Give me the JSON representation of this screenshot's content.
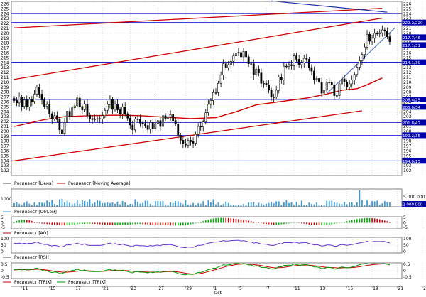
{
  "colors": {
    "background": "#ffffff",
    "candle": "#000000",
    "grid": "#c8c8c8",
    "hline": "#0000cc",
    "ma": "#cc0000",
    "channel": "#cc0000",
    "trend_blue": "#1a2fa8",
    "trend_light": "#5a7ac8",
    "volume": "#3a9bd8",
    "price_label_bg": "#0000aa",
    "ao_up": "#00aa00",
    "ao_down": "#cc0000",
    "rsi": "#6633cc",
    "trix": "#009900",
    "trix_signal": "#cc0000",
    "legend_marker": "#4a4a4a"
  },
  "chart_data": [
    {
      "panel": "price",
      "type": "candlestick",
      "series_name": "Росинвест [Цена]",
      "ma_name": "Росинвест [Moving Average]",
      "ylim": [
        191,
        226.5
      ],
      "y_ticks": [
        192,
        193,
        194,
        195,
        196,
        197,
        198,
        199,
        200,
        201,
        202,
        203,
        204,
        205,
        206,
        207,
        208,
        209,
        210,
        211,
        212,
        213,
        214,
        215,
        216,
        217,
        218,
        219,
        220,
        221,
        222,
        223,
        224,
        225,
        226
      ],
      "close": [
        206.3,
        205.8,
        207.0,
        205.1,
        206.4,
        205.0,
        206.5,
        206.1,
        207.6,
        209.0,
        207.6,
        206.4,
        205.1,
        205.5,
        203.6,
        202.5,
        203.2,
        202.4,
        200.3,
        199.6,
        201.8,
        204.1,
        203.1,
        204.8,
        205.2,
        206.8,
        205.1,
        204.4,
        205.6,
        203.3,
        202.6,
        202.4,
        202.5,
        202.6,
        202.5,
        203.2,
        204.3,
        205.5,
        206.5,
        204.5,
        205.6,
        204.4,
        203.5,
        205.0,
        203.6,
        202.7,
        201.3,
        200.3,
        202.5,
        202.5,
        201.7,
        201.6,
        201.2,
        200.4,
        201.8,
        200.6,
        201.6,
        202.2,
        201.0,
        203.2,
        202.5,
        203.0,
        203.4,
        202.2,
        201.5,
        199.2,
        198.2,
        197.5,
        197.2,
        198.2,
        197.9,
        197.6,
        199.4,
        201.0,
        200.9,
        201.9,
        203.8,
        205.5,
        206.3,
        207.9,
        207.9,
        209.8,
        211.5,
        213.8,
        213.0,
        213.6,
        214.3,
        215.4,
        216.0,
        216.1,
        215.2,
        216.3,
        215.2,
        213.8,
        213.8,
        211.5,
        212.7,
        211.9,
        209.8,
        209.8,
        209.5,
        208.4,
        207.0,
        207.0,
        208.4,
        211.1,
        210.5,
        213.3,
        213.3,
        213.6,
        213.4,
        215.4,
        214.7,
        213.6,
        214.0,
        214.9,
        214.7,
        213.0,
        212.3,
        210.6,
        210.8,
        210.0,
        207.8,
        208.4,
        210.0,
        210.0,
        209.5,
        207.3,
        207.3,
        209.7,
        210.7,
        210.1,
        209.0,
        209.7,
        210.5,
        211.6,
        213.1,
        214.4,
        215.7,
        217.2,
        219.8,
        218.4,
        219.0,
        220.0,
        219.9,
        220.1,
        220.7,
        220.5,
        219.3,
        218.3
      ],
      "moving_average": [
        {
          "i": 0,
          "v": 201.0
        },
        {
          "i": 6,
          "v": 201.7
        },
        {
          "i": 12,
          "v": 202.4
        },
        {
          "i": 20,
          "v": 203.0
        },
        {
          "i": 30,
          "v": 203.2
        },
        {
          "i": 40,
          "v": 203.3
        },
        {
          "i": 50,
          "v": 203.2
        },
        {
          "i": 60,
          "v": 202.9
        },
        {
          "i": 70,
          "v": 202.6
        },
        {
          "i": 80,
          "v": 202.8
        },
        {
          "i": 88,
          "v": 204.0
        },
        {
          "i": 96,
          "v": 205.4
        },
        {
          "i": 106,
          "v": 206.1
        },
        {
          "i": 116,
          "v": 206.8
        },
        {
          "i": 124,
          "v": 207.6
        },
        {
          "i": 130,
          "v": 208.4
        },
        {
          "i": 136,
          "v": 208.7
        },
        {
          "i": 140,
          "v": 209.5
        },
        {
          "i": 146,
          "v": 210.9
        }
      ],
      "channel_lines": [
        {
          "from": [
            0,
            221.1
          ],
          "to": [
            146,
            225.1
          ]
        },
        {
          "from": [
            0,
            210.6
          ],
          "to": [
            146,
            223.1
          ]
        },
        {
          "from": [
            0,
            194.0
          ],
          "to": [
            138,
            204.2
          ]
        }
      ],
      "trend_lines": [
        {
          "from": [
            102,
            226.6
          ],
          "to": [
            148,
            224.3
          ],
          "style": "dark"
        },
        {
          "from": [
            124,
            207.7
          ],
          "to": [
            151,
            221.1
          ],
          "style": "light"
        }
      ],
      "horizontal_levels": [
        224.0,
        222.2,
        217.6,
        214.1,
        206.5,
        205.0,
        201.8,
        199.2,
        194.0
      ],
      "price_labels": [
        {
          "text": "222.2/220",
          "value": 222.2
        },
        {
          "text": "217.7/46",
          "value": 219.2
        },
        {
          "text": "217.1/31",
          "value": 217.6
        },
        {
          "text": "214.1/39",
          "value": 214.1
        },
        {
          "text": "206.4/25",
          "value": 206.5
        },
        {
          "text": "205.0/34",
          "value": 205.0
        },
        {
          "text": "201.8/42",
          "value": 201.8
        },
        {
          "text": "199.2/35",
          "value": 199.2
        },
        {
          "text": "194.0/15",
          "value": 194.0
        }
      ]
    },
    {
      "panel": "volume",
      "type": "bar",
      "series_name": "Росинвест [Объем]",
      "y_left_label": "1000",
      "y_right_labels": [
        "5 000 000",
        "2 000 000"
      ],
      "values": [
        22,
        27,
        17,
        10,
        24,
        33,
        19,
        9,
        27,
        12,
        27,
        25,
        23,
        38,
        26,
        41,
        17,
        13,
        45,
        49,
        26,
        37,
        25,
        15,
        21,
        40,
        17,
        40,
        35,
        30,
        46,
        19,
        27,
        39,
        36,
        22,
        23,
        27,
        22,
        26,
        18,
        31,
        15,
        35,
        26,
        12,
        18,
        16,
        46,
        31,
        19,
        23,
        37,
        37,
        17,
        9,
        34,
        35,
        33,
        35,
        14,
        10,
        27,
        23,
        35,
        33,
        23,
        16,
        39,
        14,
        15,
        23,
        12,
        21,
        18,
        34,
        10,
        41,
        26,
        46,
        15,
        27,
        9,
        17,
        32,
        23,
        14,
        12,
        11,
        13,
        9,
        18,
        11,
        26,
        26,
        29,
        11,
        24,
        19,
        14,
        19,
        23,
        29,
        21,
        33,
        33,
        12,
        27,
        41,
        22,
        28,
        9,
        29,
        12,
        37,
        10,
        12,
        25,
        17,
        15,
        26,
        11,
        9,
        12,
        37,
        35,
        37,
        28,
        24,
        19,
        16,
        29,
        15,
        27,
        27,
        11,
        26,
        100,
        41,
        13,
        40,
        14,
        35,
        33,
        37,
        14,
        21,
        34,
        27,
        26
      ]
    },
    {
      "panel": "ao",
      "type": "histogram",
      "series_name": "Росинвест [AO]",
      "ylim": [
        -5,
        5
      ],
      "ticks_left": [
        "5",
        "0",
        "-5"
      ],
      "ticks_right": [
        "5",
        "0",
        "-5"
      ],
      "values": [
        0.8,
        1.5,
        2.0,
        2.4,
        2.6,
        2.4,
        2.0,
        1.5,
        0.8,
        0.2,
        -0.4,
        -0.6,
        -0.8,
        -1.0,
        -1.2,
        -1.4,
        -1.5,
        -1.7,
        -1.9,
        -2.0,
        -2.1,
        -2.0,
        -1.8,
        -1.6,
        -1.4,
        -1.2,
        -1.0,
        -0.9,
        -0.8,
        -0.7,
        -0.7,
        -0.8,
        -0.9,
        -1.0,
        -1.2,
        -1.3,
        -1.5,
        -1.6,
        -1.7,
        -1.8,
        -1.8,
        -1.8,
        -1.7,
        -1.6,
        -1.5,
        -1.4,
        -1.3,
        -1.2,
        -1.1,
        -1.0,
        -1.0,
        -1.1,
        -1.2,
        -1.3,
        -1.4,
        -1.5,
        -1.6,
        -1.7,
        -1.8,
        -1.9,
        -2.0,
        -2.1,
        -2.2,
        -2.3,
        -2.3,
        -2.3,
        -2.2,
        -2.1,
        -1.9,
        -1.6,
        -1.2,
        -0.8,
        -0.4,
        0.2,
        0.8,
        1.4,
        2.0,
        2.6,
        3.1,
        3.5,
        3.8,
        4.0,
        4.1,
        4.1,
        4.0,
        3.9,
        3.7,
        3.5,
        3.3,
        3.0,
        2.7,
        2.4,
        2.1,
        1.7,
        1.3,
        0.9,
        0.5,
        0.1,
        -0.3,
        -0.7,
        -1.0,
        -1.2,
        -1.4,
        -1.5,
        -1.5,
        -1.4,
        -1.2,
        -1.0,
        -0.7,
        -0.5,
        -0.3,
        -0.2,
        -0.2,
        -0.3,
        -0.5,
        -0.7,
        -1.0,
        -1.3,
        -1.5,
        -1.7,
        -1.8,
        -1.9,
        -1.9,
        -1.8,
        -1.7,
        -1.5,
        -1.2,
        -0.9,
        -0.5,
        -0.1,
        0.3,
        0.8,
        1.3,
        1.8,
        2.3,
        2.7,
        3.1,
        3.4,
        3.6,
        3.8,
        3.9,
        3.9,
        3.8,
        3.6,
        3.3,
        2.9,
        2.4,
        1.9,
        1.4,
        0.9
      ]
    },
    {
      "panel": "rsi",
      "type": "line",
      "series_name": "Росинвест [RSI]",
      "ylim": [
        0,
        100
      ],
      "ticks_left": [
        "100",
        "50",
        "0"
      ],
      "ticks_right": [
        "100",
        "50",
        "0"
      ],
      "values": [
        62,
        60,
        63,
        58,
        62,
        58,
        62,
        61,
        66,
        69,
        63,
        58,
        54,
        55,
        48,
        45,
        48,
        46,
        40,
        38,
        46,
        54,
        51,
        57,
        58,
        63,
        56,
        53,
        58,
        50,
        48,
        48,
        48,
        49,
        48,
        50,
        55,
        60,
        63,
        56,
        60,
        55,
        52,
        57,
        51,
        48,
        44,
        41,
        49,
        49,
        46,
        46,
        45,
        42,
        48,
        44,
        48,
        50,
        46,
        54,
        51,
        53,
        54,
        50,
        47,
        40,
        37,
        35,
        34,
        38,
        37,
        36,
        43,
        49,
        49,
        52,
        58,
        63,
        65,
        69,
        69,
        72,
        75,
        79,
        76,
        77,
        78,
        80,
        81,
        81,
        77,
        79,
        75,
        70,
        70,
        63,
        66,
        63,
        57,
        57,
        56,
        52,
        48,
        48,
        53,
        61,
        58,
        66,
        66,
        66,
        65,
        70,
        67,
        63,
        64,
        67,
        66,
        60,
        57,
        52,
        53,
        50,
        44,
        46,
        51,
        51,
        49,
        43,
        43,
        51,
        54,
        52,
        49,
        51,
        54,
        57,
        61,
        64,
        67,
        70,
        75,
        70,
        72,
        74,
        73,
        73,
        74,
        73,
        68,
        64
      ]
    },
    {
      "panel": "trix",
      "type": "line",
      "series_name": "Росинвест [TRIX]",
      "signal_name": "Росинвест [TRIX]",
      "ylim": [
        -0.5,
        0.5
      ],
      "ticks_left": [
        "0.5",
        "0",
        "-0.5"
      ],
      "ticks_right": [
        "0.5",
        "0",
        "-0.5"
      ],
      "values": [
        0.08,
        0.07,
        0.1,
        0.05,
        0.1,
        0.04,
        0.09,
        0.08,
        0.13,
        0.17,
        0.11,
        0.04,
        -0.02,
        0.0,
        -0.08,
        -0.12,
        -0.08,
        -0.1,
        -0.17,
        -0.19,
        -0.1,
        -0.01,
        -0.04,
        0.02,
        0.04,
        0.1,
        0.03,
        0.0,
        0.05,
        -0.03,
        -0.05,
        -0.06,
        -0.06,
        -0.05,
        -0.06,
        -0.03,
        0.01,
        0.05,
        0.09,
        0.02,
        0.06,
        0.01,
        -0.02,
        0.04,
        -0.02,
        -0.05,
        -0.1,
        -0.14,
        -0.06,
        -0.06,
        -0.09,
        -0.09,
        -0.11,
        -0.14,
        -0.08,
        -0.13,
        -0.09,
        -0.07,
        -0.11,
        -0.03,
        -0.06,
        -0.04,
        -0.02,
        -0.07,
        -0.1,
        -0.18,
        -0.22,
        -0.25,
        -0.26,
        -0.22,
        -0.23,
        -0.24,
        -0.17,
        -0.11,
        -0.11,
        -0.07,
        0.0,
        0.07,
        0.1,
        0.16,
        0.16,
        0.24,
        0.3,
        0.38,
        0.35,
        0.37,
        0.4,
        0.44,
        0.46,
        0.46,
        0.42,
        0.46,
        0.42,
        0.37,
        0.37,
        0.28,
        0.32,
        0.29,
        0.21,
        0.21,
        0.2,
        0.16,
        0.11,
        0.11,
        0.16,
        0.26,
        0.24,
        0.34,
        0.34,
        0.35,
        0.34,
        0.42,
        0.39,
        0.35,
        0.36,
        0.4,
        0.39,
        0.33,
        0.3,
        0.24,
        0.24,
        0.21,
        0.13,
        0.15,
        0.21,
        0.21,
        0.19,
        0.11,
        0.11,
        0.2,
        0.24,
        0.22,
        0.18,
        0.2,
        0.23,
        0.27,
        0.33,
        0.38,
        0.42,
        0.45,
        0.45,
        0.42,
        0.44,
        0.45,
        0.44,
        0.44,
        0.45,
        0.45,
        0.41,
        0.37
      ],
      "signal": [
        0.05,
        0.06,
        0.07,
        0.07,
        0.07,
        0.06,
        0.06,
        0.07,
        0.08,
        0.09,
        0.09,
        0.08,
        0.06,
        0.04,
        0.02,
        -0.01,
        -0.03,
        -0.05,
        -0.07,
        -0.09,
        -0.1,
        -0.09,
        -0.08,
        -0.07,
        -0.05,
        -0.03,
        -0.02,
        -0.01,
        0.0,
        0.0,
        -0.01,
        -0.02,
        -0.03,
        -0.04,
        -0.04,
        -0.04,
        -0.03,
        -0.02,
        0.0,
        0.01,
        0.02,
        0.02,
        0.02,
        0.02,
        0.01,
        0.0,
        -0.02,
        -0.04,
        -0.05,
        -0.06,
        -0.06,
        -0.07,
        -0.08,
        -0.09,
        -0.09,
        -0.09,
        -0.09,
        -0.09,
        -0.09,
        -0.08,
        -0.07,
        -0.06,
        -0.06,
        -0.06,
        -0.06,
        -0.08,
        -0.1,
        -0.13,
        -0.16,
        -0.18,
        -0.2,
        -0.21,
        -0.21,
        -0.2,
        -0.17,
        -0.14,
        -0.1,
        -0.06,
        -0.02,
        0.03,
        0.07,
        0.12,
        0.17,
        0.22,
        0.26,
        0.3,
        0.33,
        0.36,
        0.39,
        0.41,
        0.42,
        0.43,
        0.43,
        0.42,
        0.41,
        0.39,
        0.37,
        0.35,
        0.33,
        0.3,
        0.27,
        0.24,
        0.21,
        0.19,
        0.18,
        0.19,
        0.2,
        0.22,
        0.24,
        0.27,
        0.29,
        0.31,
        0.33,
        0.34,
        0.35,
        0.36,
        0.36,
        0.35,
        0.34,
        0.32,
        0.3,
        0.28,
        0.25,
        0.23,
        0.22,
        0.21,
        0.2,
        0.19,
        0.18,
        0.17,
        0.18,
        0.19,
        0.19,
        0.19,
        0.2,
        0.21,
        0.23,
        0.25,
        0.28,
        0.31,
        0.34,
        0.36,
        0.38,
        0.4,
        0.41,
        0.42,
        0.43,
        0.43,
        0.43,
        0.42
      ]
    },
    {
      "panel": "x_axis",
      "type": "axis",
      "day_labels": [
        {
          "i": 3,
          "text": "11"
        },
        {
          "i": 14,
          "text": "15"
        },
        {
          "i": 24,
          "text": "17"
        },
        {
          "i": 35,
          "text": "21"
        },
        {
          "i": 46,
          "text": "23"
        },
        {
          "i": 57,
          "text": "27"
        },
        {
          "i": 68,
          "text": "29"
        },
        {
          "i": 79,
          "text": "1"
        },
        {
          "i": 89,
          "text": "5"
        },
        {
          "i": 100,
          "text": "7"
        },
        {
          "i": 111,
          "text": "11"
        },
        {
          "i": 121,
          "text": "13"
        },
        {
          "i": 132,
          "text": "15"
        },
        {
          "i": 142,
          "text": "19"
        },
        {
          "i": 152,
          "text": "21"
        },
        {
          "i": 162,
          "text": "25"
        }
      ],
      "month_label": {
        "i": 79,
        "text": "Oct"
      }
    }
  ]
}
